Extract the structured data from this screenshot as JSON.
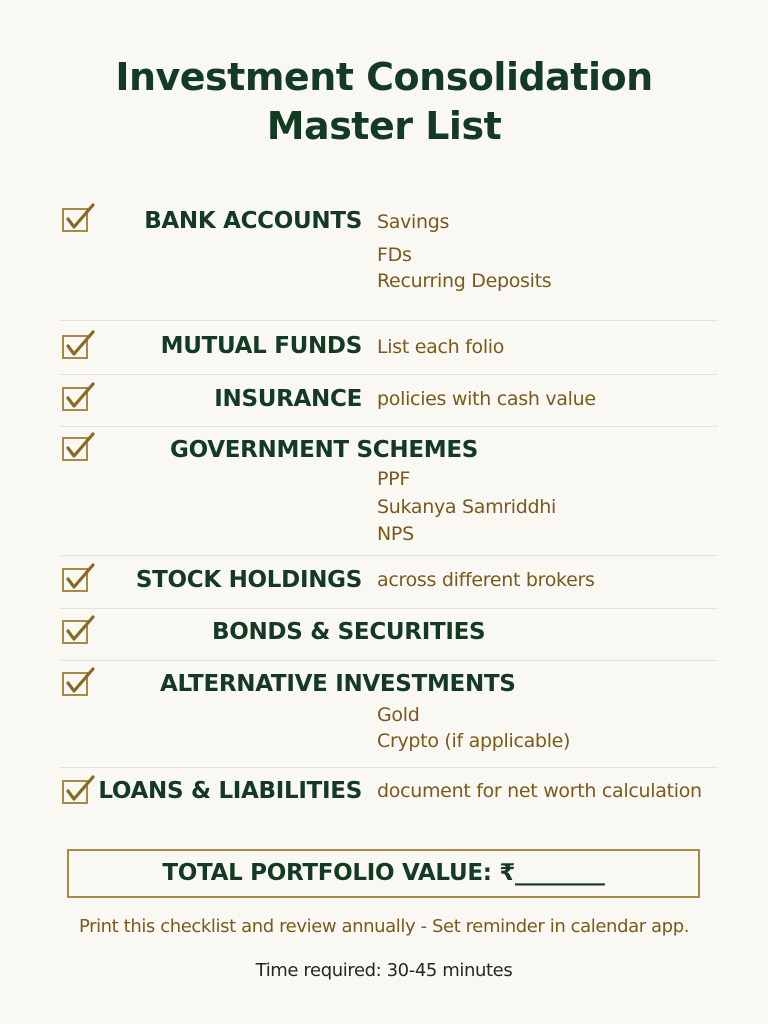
{
  "title_line1": "Investment Consolidation",
  "title_line2": "Master List",
  "colors": {
    "heading": "#143924",
    "accent_gold": "#a8894a",
    "subtext": "#7a5a1c"
  },
  "checklist": [
    {
      "heading": "BANK ACCOUNTS",
      "checked": true,
      "details": [
        "Savings",
        "FDs",
        "Recurring Deposits"
      ]
    },
    {
      "heading": "MUTUAL FUNDS",
      "checked": true,
      "details": [
        "List each folio"
      ]
    },
    {
      "heading": "INSURANCE",
      "checked": true,
      "details": [
        "policies with cash value"
      ]
    },
    {
      "heading": "GOVERNMENT SCHEMES",
      "checked": true,
      "details": [
        "PPF",
        "Sukanya Samriddhi",
        "NPS"
      ]
    },
    {
      "heading": "STOCK HOLDINGS",
      "checked": true,
      "details": [
        "across different brokers"
      ]
    },
    {
      "heading": "BONDS & SECURITIES",
      "checked": true,
      "details": []
    },
    {
      "heading": "ALTERNATIVE INVESTMENTS",
      "checked": true,
      "details": [
        "Gold",
        "Crypto (if applicable)"
      ]
    },
    {
      "heading": "LOANS & LIABILITIES",
      "checked": true,
      "details": [
        "document for net worth calculation"
      ]
    }
  ],
  "total_label": "TOTAL PORTFOLIO VALUE: ₹________",
  "footer_note": "Print this checklist and review annually - Set reminder in calendar app.",
  "time_required": "Time required: 30-45 minutes"
}
